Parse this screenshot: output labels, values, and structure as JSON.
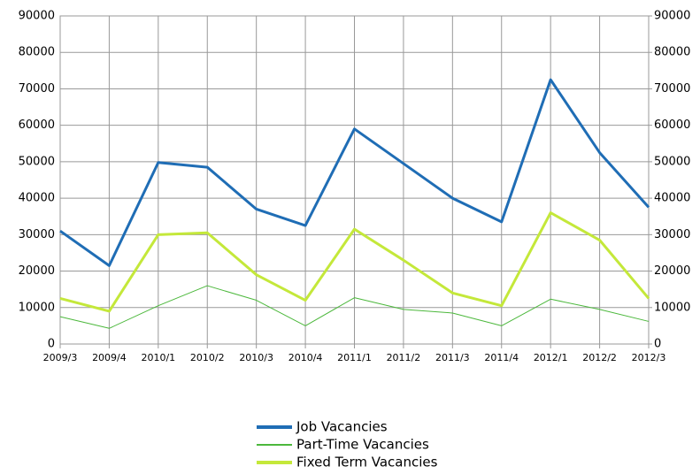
{
  "chart_data": {
    "type": "line",
    "categories": [
      "2009/3",
      "2009/4",
      "2010/1",
      "2010/2",
      "2010/3",
      "2010/4",
      "2011/1",
      "2011/2",
      "2011/3",
      "2011/4",
      "2012/1",
      "2012/2",
      "2012/3"
    ],
    "series": [
      {
        "name": "Job Vacancies",
        "color": "#1f6db5",
        "values": [
          31000,
          21500,
          49800,
          48500,
          37000,
          32500,
          59000,
          49500,
          40000,
          33500,
          72500,
          52500,
          37500
        ]
      },
      {
        "name": "Part-Time Vacancies",
        "color": "#4cb83c",
        "values": [
          7500,
          4300,
          10500,
          16000,
          12000,
          5000,
          12700,
          9500,
          8500,
          5000,
          12300,
          9500,
          6200
        ]
      },
      {
        "name": "Fixed Term Vacancies",
        "color": "#c4e83a",
        "values": [
          12500,
          9000,
          30000,
          30500,
          19000,
          12000,
          31500,
          23000,
          14000,
          10500,
          36000,
          28500,
          12500
        ]
      }
    ],
    "ylim": [
      0,
      90000
    ],
    "yticks": [
      0,
      10000,
      20000,
      30000,
      40000,
      50000,
      60000,
      70000,
      80000,
      90000
    ],
    "y2lim": [
      0,
      90000
    ],
    "y2ticks": [
      0,
      10000,
      20000,
      30000,
      40000,
      50000,
      60000,
      70000,
      80000,
      90000
    ],
    "grid": true,
    "legend": "bottom"
  }
}
